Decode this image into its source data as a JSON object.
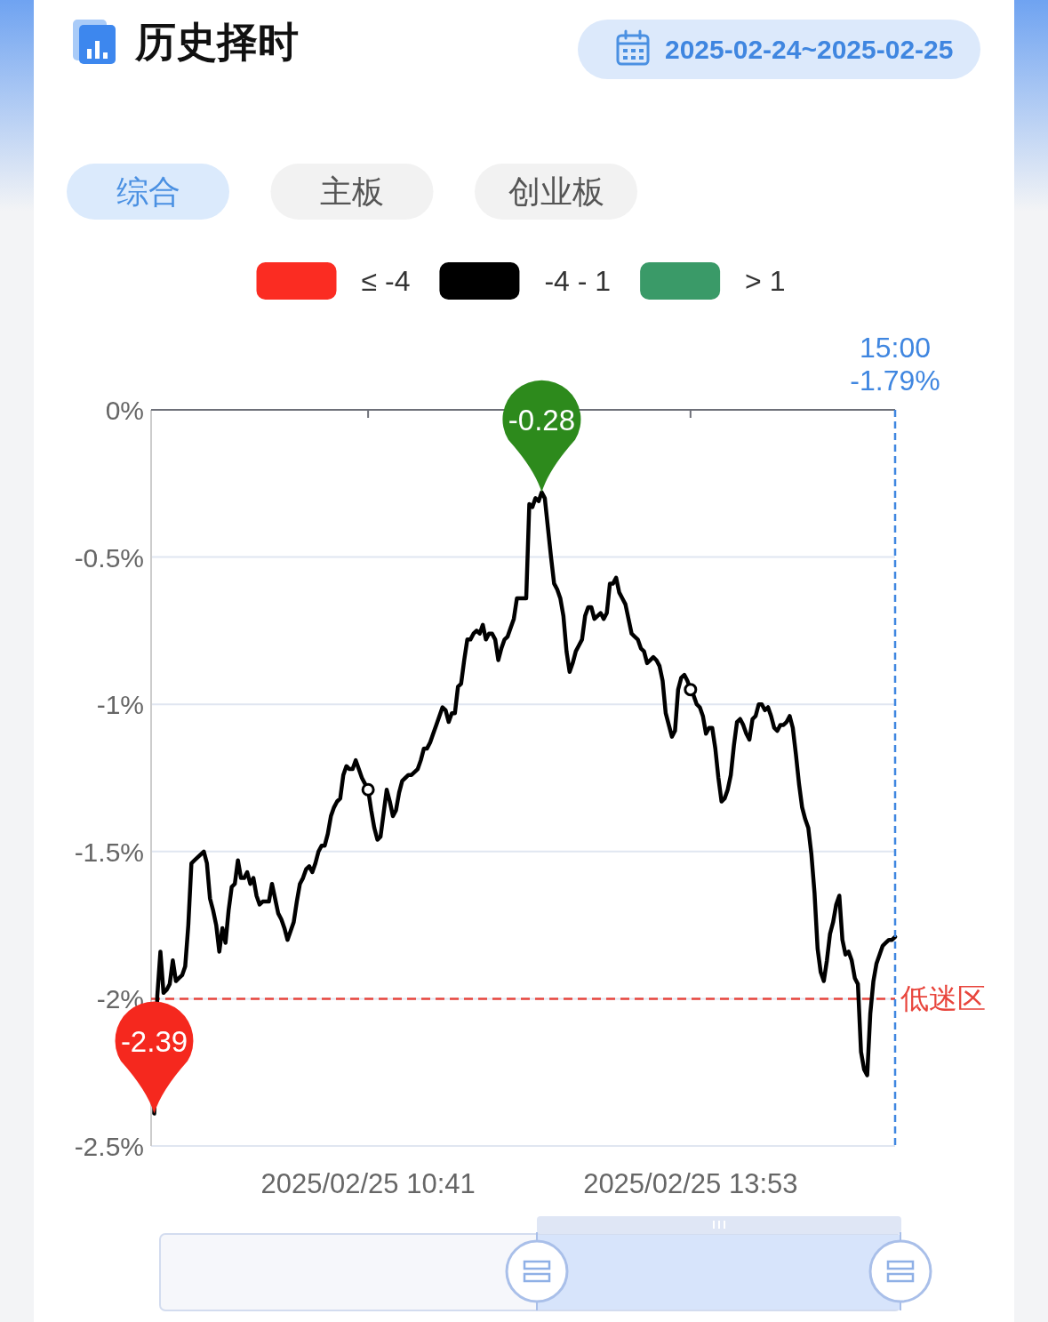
{
  "chart_data": {
    "type": "line",
    "title": "历史择时",
    "subtitle": "2025-02-24~2025-02-25",
    "categories": [
      null,
      null,
      null,
      null,
      null,
      null,
      null,
      null,
      null,
      null,
      null,
      null,
      null,
      null,
      null,
      null,
      null,
      null,
      null,
      null,
      null,
      null,
      null,
      null,
      null,
      null,
      null,
      null,
      null,
      null,
      null,
      null,
      null,
      null,
      null,
      null,
      null,
      null,
      null,
      null,
      null,
      null,
      null,
      null,
      null,
      null,
      null,
      null,
      null,
      null,
      null,
      null,
      null,
      null,
      null,
      null,
      null,
      null,
      null,
      null,
      null,
      null,
      null,
      null,
      null,
      null,
      null,
      null,
      null,
      null,
      "2025/02/25 10:41",
      null,
      null,
      null,
      null,
      null,
      null,
      null,
      null,
      null,
      null,
      null,
      null,
      null,
      null,
      null,
      null,
      null,
      null,
      null,
      null,
      null,
      null,
      null,
      null,
      null,
      null,
      null,
      null,
      null,
      null,
      null,
      null,
      null,
      null,
      null,
      null,
      null,
      null,
      null,
      null,
      null,
      null,
      null,
      null,
      null,
      null,
      null,
      null,
      null,
      null,
      null,
      null,
      null,
      null,
      null,
      null,
      null,
      null,
      null,
      null,
      null,
      null,
      null,
      null,
      null,
      null,
      null,
      null,
      null,
      null,
      null,
      null,
      null,
      null,
      null,
      null,
      null,
      null,
      null,
      null,
      null,
      null,
      null,
      null,
      null,
      null,
      null,
      null,
      null,
      null,
      null,
      null,
      null,
      null,
      null,
      null,
      null,
      null,
      null,
      null,
      null,
      null,
      null,
      "2025/02/25 13:53",
      null,
      null,
      null,
      null,
      null,
      null,
      null,
      null,
      null,
      null,
      null,
      null,
      null,
      null,
      null,
      null,
      null,
      null,
      null,
      null,
      null,
      null,
      null,
      null,
      null,
      null,
      null,
      null,
      null,
      null,
      null,
      null,
      null,
      null,
      null,
      null,
      null,
      null,
      null,
      null,
      null,
      null,
      null,
      null,
      null,
      null,
      null,
      null,
      null,
      null,
      null,
      null,
      null,
      null,
      null,
      null,
      null,
      null,
      null,
      null,
      null,
      null,
      null,
      null,
      null,
      null
    ],
    "ylim": [
      -2.5,
      0
    ],
    "yticks": [
      {
        "value": 0,
        "label": "0%"
      },
      {
        "value": -0.5,
        "label": "-0.5%"
      },
      {
        "value": -1,
        "label": "-1%"
      },
      {
        "value": -1.5,
        "label": "-1.5%"
      },
      {
        "value": -2,
        "label": "-2%"
      },
      {
        "value": -2.5,
        "label": "-2.5%"
      }
    ],
    "grid": "y",
    "legend": "top",
    "line_style": "solid",
    "series": [
      {
        "name": "≤ -4",
        "color": "#fb2c22",
        "values": [
          null,
          null,
          null,
          null,
          null,
          null,
          null,
          null,
          null,
          null,
          null,
          null,
          null,
          null,
          null,
          null,
          null,
          null,
          null,
          null,
          null,
          null,
          null,
          null,
          null,
          null,
          null,
          null,
          null,
          null,
          null,
          null,
          null,
          null,
          null,
          null,
          null,
          null,
          null,
          null,
          null,
          null,
          null,
          null,
          null,
          null,
          null,
          null,
          null,
          null,
          null,
          null,
          null,
          null,
          null,
          null,
          null,
          null,
          null,
          null,
          null,
          null,
          null,
          null,
          null,
          null,
          null,
          null,
          null,
          null,
          null,
          null,
          null,
          null,
          null,
          null,
          null,
          null,
          null,
          null,
          null,
          null,
          null,
          null,
          null,
          null,
          null,
          null,
          null,
          null,
          null,
          null,
          null,
          null,
          null,
          null,
          null,
          null,
          null,
          null,
          null,
          null,
          null,
          null,
          null,
          null,
          null,
          null,
          null,
          null,
          null,
          null,
          null,
          null,
          null,
          null,
          null,
          null,
          null,
          null,
          null,
          null,
          null,
          null,
          null,
          null,
          null,
          null,
          null,
          null,
          null,
          null,
          null,
          null,
          null,
          null,
          null,
          null,
          null,
          null,
          null,
          null,
          null,
          null,
          null,
          null,
          null,
          null,
          null,
          null,
          null,
          null,
          null,
          null,
          null,
          null,
          null,
          null,
          null,
          null,
          null,
          null,
          null,
          null,
          null,
          null,
          null,
          null,
          null,
          null,
          null,
          null,
          null,
          null,
          null,
          null,
          null,
          null,
          null,
          null,
          null,
          null,
          null,
          null,
          null,
          null,
          null,
          null,
          null,
          null,
          null,
          null,
          null,
          null,
          null,
          null,
          null,
          null,
          null,
          null,
          null,
          null,
          null,
          null,
          null,
          null,
          null,
          null,
          null,
          null,
          null,
          null,
          null,
          null,
          null,
          null,
          null,
          null,
          null,
          null,
          null,
          null,
          null,
          null,
          null,
          null,
          null,
          null,
          null,
          null,
          null,
          null,
          null,
          null,
          null,
          null,
          null,
          null,
          null,
          null,
          null
        ]
      },
      {
        "name": "-4 - 1",
        "color": "#000000",
        "values": [
          null,
          -2.39,
          -1.99,
          -1.84,
          -1.98,
          -1.97,
          -1.95,
          -1.87,
          -1.94,
          -1.93,
          -1.92,
          -1.89,
          -1.75,
          -1.54,
          -1.53,
          -1.52,
          -1.51,
          -1.5,
          -1.54,
          -1.66,
          -1.7,
          -1.75,
          -1.84,
          -1.76,
          -1.81,
          -1.7,
          -1.62,
          -1.61,
          -1.53,
          -1.59,
          -1.59,
          -1.57,
          -1.61,
          -1.59,
          -1.65,
          -1.68,
          -1.67,
          -1.67,
          -1.67,
          -1.61,
          -1.66,
          -1.71,
          -1.73,
          -1.76,
          -1.8,
          -1.77,
          -1.74,
          -1.67,
          -1.61,
          -1.59,
          -1.56,
          -1.55,
          -1.57,
          -1.54,
          -1.5,
          -1.48,
          -1.48,
          -1.44,
          -1.38,
          -1.35,
          -1.33,
          -1.32,
          -1.24,
          -1.21,
          -1.22,
          -1.22,
          -1.19,
          -1.22,
          -1.25,
          -1.27,
          -1.29,
          -1.36,
          -1.42,
          -1.46,
          -1.45,
          -1.37,
          -1.29,
          -1.33,
          -1.38,
          -1.36,
          -1.3,
          -1.26,
          -1.25,
          -1.24,
          -1.24,
          -1.23,
          -1.22,
          -1.19,
          -1.15,
          -1.15,
          -1.13,
          -1.1,
          -1.07,
          -1.04,
          -1.01,
          -1.02,
          -1.06,
          -1.03,
          -1.03,
          -0.94,
          -0.93,
          -0.85,
          -0.78,
          -0.78,
          -0.76,
          -0.75,
          -0.76,
          -0.73,
          -0.78,
          -0.76,
          -0.76,
          -0.78,
          -0.85,
          -0.81,
          -0.78,
          -0.77,
          -0.74,
          -0.71,
          -0.64,
          -0.64,
          -0.64,
          -0.64,
          -0.32,
          -0.33,
          -0.3,
          -0.31,
          -0.28,
          -0.3,
          -0.4,
          -0.5,
          -0.59,
          -0.61,
          -0.64,
          -0.7,
          -0.82,
          -0.89,
          -0.86,
          -0.82,
          -0.8,
          -0.78,
          -0.7,
          -0.67,
          -0.67,
          -0.71,
          -0.7,
          -0.69,
          -0.71,
          -0.69,
          -0.59,
          -0.59,
          -0.57,
          -0.62,
          -0.64,
          -0.66,
          -0.71,
          -0.76,
          -0.77,
          -0.78,
          -0.81,
          -0.82,
          -0.86,
          -0.85,
          -0.84,
          -0.85,
          -0.87,
          -0.92,
          -1.03,
          -1.07,
          -1.11,
          -1.09,
          -0.95,
          -0.91,
          -0.9,
          -0.92,
          -0.95,
          -0.97,
          -1.0,
          -1.01,
          -1.04,
          -1.1,
          -1.08,
          -1.08,
          -1.15,
          -1.25,
          -1.33,
          -1.32,
          -1.29,
          -1.24,
          -1.14,
          -1.06,
          -1.05,
          -1.07,
          -1.1,
          -1.12,
          -1.05,
          -1.04,
          -1.0,
          -1.0,
          -1.02,
          -1.01,
          -1.04,
          -1.08,
          -1.09,
          -1.07,
          -1.07,
          -1.06,
          -1.04,
          -1.08,
          -1.17,
          -1.27,
          -1.35,
          -1.39,
          -1.42,
          -1.51,
          -1.64,
          -1.83,
          -1.91,
          -1.94,
          -1.87,
          -1.78,
          -1.74,
          -1.68,
          -1.65,
          -1.8,
          -1.85,
          -1.84,
          -1.87,
          -1.93,
          -1.95,
          -2.18,
          -2.24,
          -2.26,
          -2.05,
          -1.94,
          -1.88,
          -1.85,
          -1.82,
          -1.81,
          -1.8,
          -1.8,
          -1.79
        ]
      },
      {
        "name": "> 1",
        "color": "#3a9a68",
        "values": [
          null,
          null,
          null,
          null,
          null,
          null,
          null,
          null,
          null,
          null,
          null,
          null,
          null,
          null,
          null,
          null,
          null,
          null,
          null,
          null,
          null,
          null,
          null,
          null,
          null,
          null,
          null,
          null,
          null,
          null,
          null,
          null,
          null,
          null,
          null,
          null,
          null,
          null,
          null,
          null,
          null,
          null,
          null,
          null,
          null,
          null,
          null,
          null,
          null,
          null,
          null,
          null,
          null,
          null,
          null,
          null,
          null,
          null,
          null,
          null,
          null,
          null,
          null,
          null,
          null,
          null,
          null,
          null,
          null,
          null,
          null,
          null,
          null,
          null,
          null,
          null,
          null,
          null,
          null,
          null,
          null,
          null,
          null,
          null,
          null,
          null,
          null,
          null,
          null,
          null,
          null,
          null,
          null,
          null,
          null,
          null,
          null,
          null,
          null,
          null,
          null,
          null,
          null,
          null,
          null,
          null,
          null,
          null,
          null,
          null,
          null,
          null,
          null,
          null,
          null,
          null,
          null,
          null,
          null,
          null,
          null,
          null,
          null,
          null,
          null,
          null,
          null,
          null,
          null,
          null,
          null,
          null,
          null,
          null,
          null,
          null,
          null,
          null,
          null,
          null,
          null,
          null,
          null,
          null,
          null,
          null,
          null,
          null,
          null,
          null,
          null,
          null,
          null,
          null,
          null,
          null,
          null,
          null,
          null,
          null,
          null,
          null,
          null,
          null,
          null,
          null,
          null,
          null,
          null,
          null,
          null,
          null,
          null,
          null,
          null,
          null,
          null,
          null,
          null,
          null,
          null,
          null,
          null,
          null,
          null,
          null,
          null,
          null,
          null,
          null,
          null,
          null,
          null,
          null,
          null,
          null,
          null,
          null,
          null,
          null,
          null,
          null,
          null,
          null,
          null,
          null,
          null,
          null,
          null,
          null,
          null,
          null,
          null,
          null,
          null,
          null,
          null,
          null,
          null,
          null,
          null,
          null,
          null,
          null,
          null,
          null,
          null,
          null,
          null,
          null,
          null,
          null,
          null,
          null,
          null,
          null,
          null,
          null,
          null,
          null,
          null
        ]
      },
      {
        "type": "scatter",
        "marker": "circle",
        "color": "#000000",
        "values": [
          null,
          null,
          null,
          null,
          null,
          null,
          null,
          null,
          null,
          null,
          null,
          null,
          null,
          null,
          null,
          null,
          null,
          null,
          null,
          null,
          null,
          null,
          null,
          null,
          null,
          null,
          null,
          null,
          null,
          null,
          null,
          null,
          null,
          null,
          null,
          null,
          null,
          null,
          null,
          null,
          null,
          null,
          null,
          null,
          null,
          null,
          null,
          null,
          null,
          null,
          null,
          null,
          null,
          null,
          null,
          null,
          null,
          null,
          null,
          null,
          null,
          null,
          null,
          null,
          null,
          null,
          null,
          null,
          null,
          null,
          -1.29,
          null,
          null,
          null,
          null,
          null,
          null,
          null,
          null,
          null,
          null,
          null,
          null,
          null,
          null,
          null,
          null,
          null,
          null,
          null,
          null,
          null,
          null,
          null,
          null,
          null,
          null,
          null,
          null,
          null,
          null,
          null,
          null,
          null,
          null,
          null,
          null,
          null,
          null,
          null,
          null,
          null,
          null,
          null,
          null,
          null,
          null,
          null,
          null,
          null,
          null,
          null,
          null,
          null,
          null,
          null,
          null,
          null,
          null,
          null,
          null,
          null,
          null,
          null,
          null,
          null,
          null,
          null,
          null,
          null,
          null,
          null,
          null,
          null,
          null,
          null,
          null,
          null,
          null,
          null,
          null,
          null,
          null,
          null,
          null,
          null,
          null,
          null,
          null,
          null,
          null,
          null,
          null,
          null,
          null,
          null,
          null,
          null,
          null,
          null,
          null,
          null,
          null,
          null,
          -0.95,
          null,
          null,
          null,
          null,
          null,
          null,
          null,
          null,
          null,
          null,
          null,
          null,
          null,
          null,
          null,
          null,
          null,
          null,
          null,
          null,
          null,
          null,
          null,
          null,
          null,
          null,
          null,
          null,
          null,
          null,
          null,
          null,
          null,
          null,
          null,
          null,
          null,
          null,
          null,
          null,
          null,
          null,
          null,
          null,
          null,
          null,
          null,
          null,
          null,
          null,
          null,
          null,
          null,
          null,
          null,
          null,
          null,
          null,
          null,
          null,
          null,
          null,
          null,
          null,
          null,
          null
        ]
      }
    ],
    "ref_lines": [
      {
        "axis": "y",
        "value": -2,
        "label": "低迷区",
        "color": "#e8453c",
        "line_style": "dashed"
      }
    ],
    "annotations": [
      "综合",
      "主板",
      "创业板",
      "15:00\n-1.79%",
      {
        "text": "-2.39",
        "y": -2.39
      },
      {
        "text": "-0.28",
        "y": -0.28
      }
    ]
  }
}
